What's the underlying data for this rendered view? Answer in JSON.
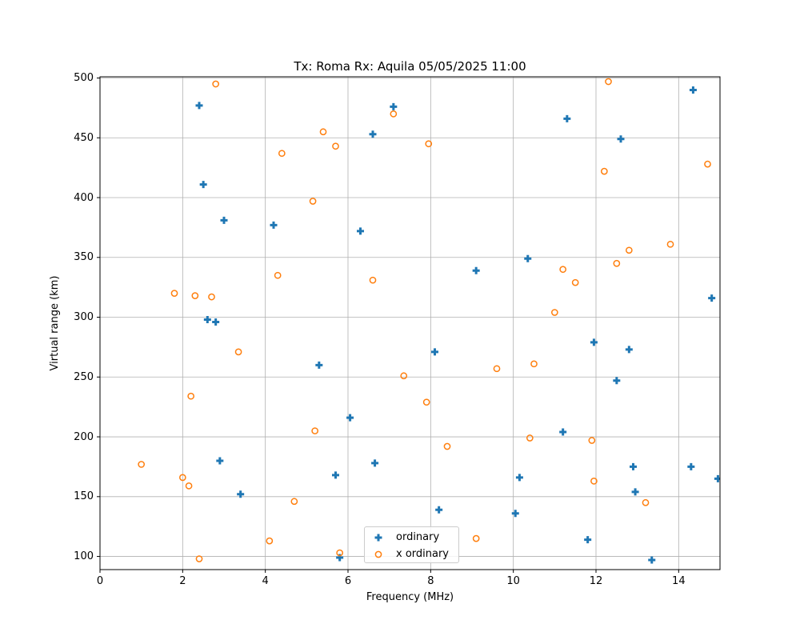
{
  "chart_data": {
    "type": "scatter",
    "title": "Tx: Roma Rx: Aquila 05/05/2025 11:00",
    "xlabel": "Frequency (MHz)",
    "ylabel": "Virtual range (km)",
    "xlim": [
      0,
      15
    ],
    "ylim": [
      89,
      501
    ],
    "x_ticks": [
      0,
      2,
      4,
      6,
      8,
      10,
      12,
      14
    ],
    "y_ticks": [
      100,
      150,
      200,
      250,
      300,
      350,
      400,
      450,
      500
    ],
    "grid": true,
    "grid_color": "#b0b0b0",
    "legend_position": "lower center inside",
    "series": [
      {
        "name": "ordinary",
        "marker": "plus_filled",
        "color": "#1f77b4",
        "points": [
          [
            2.4,
            477
          ],
          [
            2.5,
            411
          ],
          [
            2.6,
            298
          ],
          [
            2.8,
            296
          ],
          [
            2.9,
            180
          ],
          [
            3.0,
            381
          ],
          [
            3.4,
            152
          ],
          [
            4.2,
            377
          ],
          [
            5.3,
            260
          ],
          [
            5.7,
            168
          ],
          [
            5.8,
            99
          ],
          [
            6.05,
            216
          ],
          [
            6.3,
            372
          ],
          [
            6.6,
            453
          ],
          [
            6.65,
            178
          ],
          [
            7.1,
            476
          ],
          [
            8.1,
            271
          ],
          [
            8.2,
            139
          ],
          [
            9.1,
            339
          ],
          [
            10.05,
            136
          ],
          [
            10.15,
            166
          ],
          [
            10.35,
            349
          ],
          [
            11.2,
            204
          ],
          [
            11.3,
            466
          ],
          [
            11.8,
            114
          ],
          [
            11.95,
            279
          ],
          [
            12.5,
            247
          ],
          [
            12.6,
            449
          ],
          [
            12.8,
            273
          ],
          [
            12.9,
            175
          ],
          [
            12.95,
            154
          ],
          [
            13.35,
            97
          ],
          [
            14.3,
            175
          ],
          [
            14.35,
            490
          ],
          [
            14.8,
            316
          ],
          [
            14.95,
            165
          ]
        ]
      },
      {
        "name": "x ordinary",
        "marker": "open_circle",
        "color": "#ff7f0e",
        "points": [
          [
            1.0,
            177
          ],
          [
            1.8,
            320
          ],
          [
            2.0,
            166
          ],
          [
            2.15,
            159
          ],
          [
            2.2,
            234
          ],
          [
            2.3,
            318
          ],
          [
            2.4,
            98
          ],
          [
            2.7,
            317
          ],
          [
            2.8,
            495
          ],
          [
            3.35,
            271
          ],
          [
            4.1,
            113
          ],
          [
            4.3,
            335
          ],
          [
            4.4,
            437
          ],
          [
            4.7,
            146
          ],
          [
            5.15,
            397
          ],
          [
            5.2,
            205
          ],
          [
            5.4,
            455
          ],
          [
            5.7,
            443
          ],
          [
            5.8,
            103
          ],
          [
            6.6,
            331
          ],
          [
            7.1,
            470
          ],
          [
            7.35,
            251
          ],
          [
            7.9,
            229
          ],
          [
            7.95,
            445
          ],
          [
            8.4,
            192
          ],
          [
            9.1,
            115
          ],
          [
            9.6,
            257
          ],
          [
            10.4,
            199
          ],
          [
            10.5,
            261
          ],
          [
            11.0,
            304
          ],
          [
            11.2,
            340
          ],
          [
            11.5,
            329
          ],
          [
            11.9,
            197
          ],
          [
            11.95,
            163
          ],
          [
            12.2,
            422
          ],
          [
            12.3,
            497
          ],
          [
            12.5,
            345
          ],
          [
            12.8,
            356
          ],
          [
            13.2,
            145
          ],
          [
            13.8,
            361
          ],
          [
            14.7,
            428
          ]
        ]
      }
    ]
  }
}
